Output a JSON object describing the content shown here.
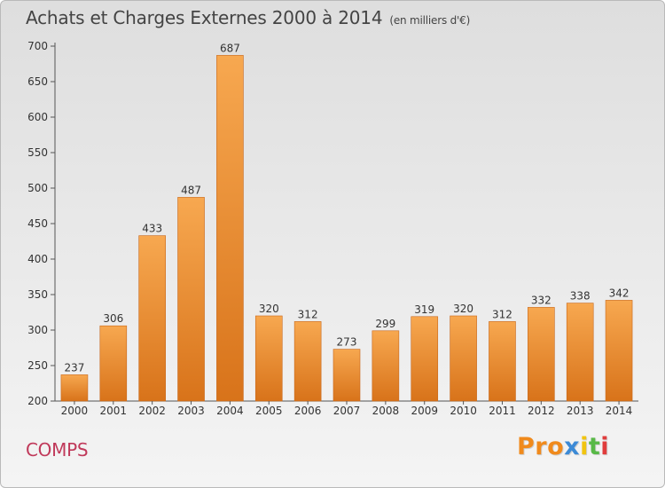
{
  "chart_data": {
    "type": "bar",
    "title": "Achats et Charges Externes 2000 à 2014",
    "subtitle": "(en milliers d'€)",
    "categories": [
      "2000",
      "2001",
      "2002",
      "2003",
      "2004",
      "2005",
      "2006",
      "2007",
      "2008",
      "2009",
      "2010",
      "2011",
      "2012",
      "2013",
      "2014"
    ],
    "values": [
      237,
      306,
      433,
      487,
      687,
      320,
      312,
      273,
      299,
      319,
      320,
      312,
      332,
      338,
      342
    ],
    "ylim": [
      200,
      700
    ],
    "yticks": [
      200,
      250,
      300,
      350,
      400,
      450,
      500,
      550,
      600,
      650,
      700
    ],
    "grid": false,
    "legend": "none",
    "bar_color": "#f08c2a"
  },
  "footer": {
    "town": "COMPS",
    "logo_parts": [
      "Pro",
      "x",
      "i",
      "t",
      "i"
    ]
  }
}
